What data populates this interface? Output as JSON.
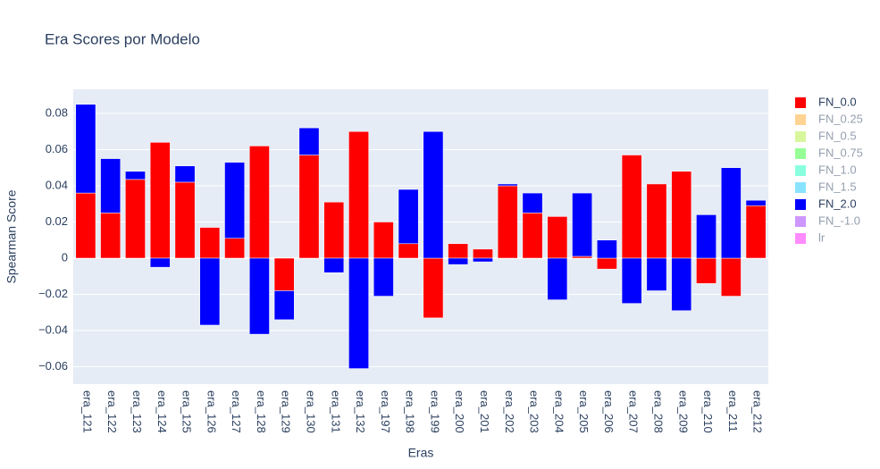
{
  "chart_data": {
    "type": "bar",
    "barmode": "relative",
    "title": "Era Scores por Modelo",
    "x_label": "Eras",
    "y_label": "Spearman Score",
    "categories": [
      "era_121",
      "era_122",
      "era_123",
      "era_124",
      "era_125",
      "era_126",
      "era_127",
      "era_128",
      "era_129",
      "era_130",
      "era_131",
      "era_132",
      "era_197",
      "era_198",
      "era_199",
      "era_200",
      "era_201",
      "era_202",
      "era_203",
      "era_204",
      "era_205",
      "era_206",
      "era_207",
      "era_208",
      "era_209",
      "era_210",
      "era_211",
      "era_212"
    ],
    "series": [
      {
        "name": "FN_0.0",
        "color": "#ff0000",
        "values": [
          0.036,
          0.025,
          0.0435,
          0.064,
          0.042,
          0.017,
          0.011,
          0.062,
          -0.018,
          0.057,
          0.031,
          0.07,
          0.02,
          0.008,
          -0.033,
          0.008,
          0.005,
          0.04,
          0.025,
          0.023,
          0.001,
          -0.006,
          0.057,
          0.041,
          0.048,
          -0.014,
          -0.021,
          0.029
        ]
      },
      {
        "name": "FN_0.25",
        "color": "#ffa726",
        "visible": "legendonly"
      },
      {
        "name": "FN_0.5",
        "color": "#b2ef3a",
        "visible": "legendonly"
      },
      {
        "name": "FN_0.75",
        "color": "#2eff2e",
        "visible": "legendonly"
      },
      {
        "name": "FN_1.0",
        "color": "#14ffc0",
        "visible": "legendonly"
      },
      {
        "name": "FN_1.5",
        "color": "#14c8ff",
        "visible": "legendonly"
      },
      {
        "name": "FN_2.0",
        "color": "#0000ff",
        "values": [
          0.049,
          0.03,
          0.0045,
          -0.005,
          0.009,
          -0.037,
          0.042,
          -0.042,
          -0.016,
          0.015,
          -0.008,
          -0.061,
          -0.021,
          0.03,
          0.07,
          -0.0035,
          -0.002,
          0.001,
          0.011,
          -0.023,
          0.035,
          0.01,
          -0.025,
          -0.018,
          -0.029,
          0.024,
          0.05,
          0.003
        ]
      },
      {
        "name": "FN_-1.0",
        "color": "#9b30ff",
        "visible": "legendonly"
      },
      {
        "name": "lr",
        "color": "#ff1aff",
        "visible": "legendonly"
      }
    ],
    "ylim": [
      -0.0696,
      0.0933
    ],
    "yticks": [
      {
        "value": -0.06,
        "label": "−0.06"
      },
      {
        "value": -0.04,
        "label": "−0.04"
      },
      {
        "value": -0.02,
        "label": "−0.02"
      },
      0,
      0.02,
      0.04,
      0.06,
      0.08
    ],
    "grid": true,
    "legend": "right"
  }
}
